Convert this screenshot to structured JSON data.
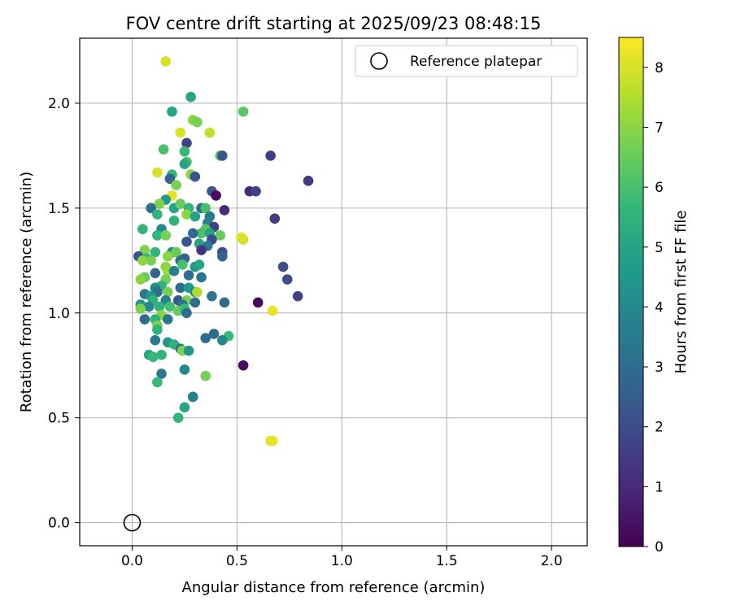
{
  "chart_data": {
    "type": "scatter",
    "title": "FOV centre drift starting at 2025/09/23 08:48:15",
    "xlabel": "Angular distance from reference (arcmin)",
    "ylabel": "Rotation from reference (arcmin)",
    "xlim": [
      -0.25,
      2.17
    ],
    "ylim": [
      -0.11,
      2.31
    ],
    "xticks": [
      0.0,
      0.5,
      1.0,
      1.5,
      2.0
    ],
    "xtick_labels": [
      "0.0",
      "0.5",
      "1.0",
      "1.5",
      "2.0"
    ],
    "yticks": [
      0.0,
      0.5,
      1.0,
      1.5,
      2.0
    ],
    "ytick_labels": [
      "0.0",
      "0.5",
      "1.0",
      "1.5",
      "2.0"
    ],
    "grid": true,
    "legend": {
      "label": "Reference platepar",
      "position": "top-right"
    },
    "reference_point": {
      "x": 0.0,
      "y": 0.0
    },
    "colorbar": {
      "label": "Hours from first FF file",
      "min": 0,
      "max": 8.5,
      "ticks": [
        0,
        1,
        2,
        3,
        4,
        5,
        6,
        7,
        8
      ],
      "tick_labels": [
        "0",
        "1",
        "2",
        "3",
        "4",
        "5",
        "6",
        "7",
        "8"
      ],
      "colormap": [
        "#440154",
        "#482878",
        "#3e4989",
        "#31688e",
        "#26828e",
        "#1f9e89",
        "#35b779",
        "#6ece58",
        "#b5de2b",
        "#fde725"
      ]
    },
    "points": [
      {
        "x": 0.16,
        "y": 2.2,
        "h": 8.0
      },
      {
        "x": 0.28,
        "y": 2.03,
        "h": 5.0
      },
      {
        "x": 0.19,
        "y": 1.96,
        "h": 5.0
      },
      {
        "x": 0.53,
        "y": 1.96,
        "h": 6.3
      },
      {
        "x": 0.29,
        "y": 1.92,
        "h": 7.0
      },
      {
        "x": 0.31,
        "y": 1.91,
        "h": 6.7
      },
      {
        "x": 0.23,
        "y": 1.86,
        "h": 8.0
      },
      {
        "x": 0.37,
        "y": 1.86,
        "h": 7.7
      },
      {
        "x": 0.26,
        "y": 1.81,
        "h": 1.7
      },
      {
        "x": 0.15,
        "y": 1.78,
        "h": 6.0
      },
      {
        "x": 0.25,
        "y": 1.77,
        "h": 5.7
      },
      {
        "x": 0.42,
        "y": 1.75,
        "h": 6.3
      },
      {
        "x": 0.43,
        "y": 1.75,
        "h": 2.3
      },
      {
        "x": 0.66,
        "y": 1.75,
        "h": 1.6
      },
      {
        "x": 0.84,
        "y": 1.63,
        "h": 1.5
      },
      {
        "x": 0.26,
        "y": 1.72,
        "h": 6.0
      },
      {
        "x": 0.25,
        "y": 1.71,
        "h": 5.0
      },
      {
        "x": 0.12,
        "y": 1.67,
        "h": 8.0
      },
      {
        "x": 0.28,
        "y": 1.66,
        "h": 7.0
      },
      {
        "x": 0.19,
        "y": 1.66,
        "h": 5.7
      },
      {
        "x": 0.3,
        "y": 1.65,
        "h": 2.3
      },
      {
        "x": 0.18,
        "y": 1.64,
        "h": 2.7
      },
      {
        "x": 0.21,
        "y": 1.61,
        "h": 6.7
      },
      {
        "x": 0.56,
        "y": 1.58,
        "h": 1.0
      },
      {
        "x": 0.59,
        "y": 1.58,
        "h": 1.7
      },
      {
        "x": 0.38,
        "y": 1.58,
        "h": 2.3
      },
      {
        "x": 0.19,
        "y": 1.56,
        "h": 8.2
      },
      {
        "x": 0.4,
        "y": 1.56,
        "h": 0.3
      },
      {
        "x": 0.16,
        "y": 1.54,
        "h": 4.5
      },
      {
        "x": 0.13,
        "y": 1.52,
        "h": 6.8
      },
      {
        "x": 0.09,
        "y": 1.5,
        "h": 3.0
      },
      {
        "x": 0.2,
        "y": 1.5,
        "h": 5.0
      },
      {
        "x": 0.23,
        "y": 1.52,
        "h": 6.5
      },
      {
        "x": 0.27,
        "y": 1.5,
        "h": 5.5
      },
      {
        "x": 0.33,
        "y": 1.5,
        "h": 3.0
      },
      {
        "x": 0.35,
        "y": 1.5,
        "h": 6.0
      },
      {
        "x": 0.44,
        "y": 1.49,
        "h": 1.0
      },
      {
        "x": 0.12,
        "y": 1.47,
        "h": 5.5
      },
      {
        "x": 0.26,
        "y": 1.47,
        "h": 7.0
      },
      {
        "x": 0.3,
        "y": 1.46,
        "h": 5.0
      },
      {
        "x": 0.37,
        "y": 1.46,
        "h": 3.3
      },
      {
        "x": 0.68,
        "y": 1.45,
        "h": 1.5
      },
      {
        "x": 0.2,
        "y": 1.44,
        "h": 5.5
      },
      {
        "x": 0.36,
        "y": 1.43,
        "h": 3.7
      },
      {
        "x": 0.39,
        "y": 1.41,
        "h": 1.7
      },
      {
        "x": 0.05,
        "y": 1.4,
        "h": 5.5
      },
      {
        "x": 0.14,
        "y": 1.4,
        "h": 4.0
      },
      {
        "x": 0.35,
        "y": 1.4,
        "h": 6.3
      },
      {
        "x": 0.33,
        "y": 1.38,
        "h": 6.0
      },
      {
        "x": 0.37,
        "y": 1.38,
        "h": 5.0
      },
      {
        "x": 0.12,
        "y": 1.37,
        "h": 5.5
      },
      {
        "x": 0.16,
        "y": 1.37,
        "h": 6.7
      },
      {
        "x": 0.29,
        "y": 1.38,
        "h": 3.0
      },
      {
        "x": 0.42,
        "y": 1.37,
        "h": 6.5
      },
      {
        "x": 0.38,
        "y": 1.35,
        "h": 2.0
      },
      {
        "x": 0.26,
        "y": 1.34,
        "h": 2.3
      },
      {
        "x": 0.32,
        "y": 1.33,
        "h": 5.0
      },
      {
        "x": 0.36,
        "y": 1.32,
        "h": 3.3
      },
      {
        "x": 0.33,
        "y": 1.3,
        "h": 1.2
      },
      {
        "x": 0.06,
        "y": 1.3,
        "h": 6.8
      },
      {
        "x": 0.11,
        "y": 1.29,
        "h": 5.5
      },
      {
        "x": 0.19,
        "y": 1.29,
        "h": 4.0
      },
      {
        "x": 0.21,
        "y": 1.29,
        "h": 6.5
      },
      {
        "x": 0.43,
        "y": 1.29,
        "h": 2.0
      },
      {
        "x": 0.52,
        "y": 1.36,
        "h": 8.2
      },
      {
        "x": 0.53,
        "y": 1.35,
        "h": 8.0
      },
      {
        "x": 0.03,
        "y": 1.27,
        "h": 2.3
      },
      {
        "x": 0.17,
        "y": 1.27,
        "h": 7.0
      },
      {
        "x": 0.43,
        "y": 1.27,
        "h": 2.7
      },
      {
        "x": 0.07,
        "y": 1.26,
        "h": 5.5
      },
      {
        "x": 0.09,
        "y": 1.25,
        "h": 6.7
      },
      {
        "x": 0.23,
        "y": 1.25,
        "h": 3.3
      },
      {
        "x": 0.25,
        "y": 1.26,
        "h": 2.7
      },
      {
        "x": 0.05,
        "y": 1.25,
        "h": 7.0
      },
      {
        "x": 0.16,
        "y": 1.22,
        "h": 7.0
      },
      {
        "x": 0.24,
        "y": 1.23,
        "h": 6.0
      },
      {
        "x": 0.3,
        "y": 1.22,
        "h": 4.5
      },
      {
        "x": 0.32,
        "y": 1.23,
        "h": 5.0
      },
      {
        "x": 0.72,
        "y": 1.22,
        "h": 2.0
      },
      {
        "x": 0.17,
        "y": 1.2,
        "h": 7.2
      },
      {
        "x": 0.2,
        "y": 1.2,
        "h": 3.7
      },
      {
        "x": 0.06,
        "y": 1.17,
        "h": 6.5
      },
      {
        "x": 0.11,
        "y": 1.19,
        "h": 2.7
      },
      {
        "x": 0.27,
        "y": 1.18,
        "h": 3.0
      },
      {
        "x": 0.33,
        "y": 1.17,
        "h": 3.3
      },
      {
        "x": 0.74,
        "y": 1.16,
        "h": 2.0
      },
      {
        "x": 0.04,
        "y": 1.16,
        "h": 7.0
      },
      {
        "x": 0.16,
        "y": 1.16,
        "h": 6.7
      },
      {
        "x": 0.14,
        "y": 1.13,
        "h": 5.5
      },
      {
        "x": 0.11,
        "y": 1.12,
        "h": 4.0
      },
      {
        "x": 0.23,
        "y": 1.12,
        "h": 3.0
      },
      {
        "x": 0.27,
        "y": 1.12,
        "h": 4.7
      },
      {
        "x": 0.12,
        "y": 1.1,
        "h": 3.0
      },
      {
        "x": 0.17,
        "y": 1.1,
        "h": 6.7
      },
      {
        "x": 0.3,
        "y": 1.1,
        "h": 3.7
      },
      {
        "x": 0.31,
        "y": 1.1,
        "h": 7.5
      },
      {
        "x": 0.06,
        "y": 1.09,
        "h": 3.3
      },
      {
        "x": 0.09,
        "y": 1.08,
        "h": 4.5
      },
      {
        "x": 0.38,
        "y": 1.08,
        "h": 3.3
      },
      {
        "x": 0.79,
        "y": 1.08,
        "h": 1.7
      },
      {
        "x": 0.1,
        "y": 1.06,
        "h": 5.5
      },
      {
        "x": 0.16,
        "y": 1.06,
        "h": 3.7
      },
      {
        "x": 0.22,
        "y": 1.06,
        "h": 2.3
      },
      {
        "x": 0.26,
        "y": 1.06,
        "h": 6.7
      },
      {
        "x": 0.3,
        "y": 1.05,
        "h": 3.0
      },
      {
        "x": 0.44,
        "y": 1.05,
        "h": 3.0
      },
      {
        "x": 0.6,
        "y": 1.05,
        "h": 0.2
      },
      {
        "x": 0.04,
        "y": 1.04,
        "h": 4.5
      },
      {
        "x": 0.08,
        "y": 1.03,
        "h": 4.0
      },
      {
        "x": 0.13,
        "y": 1.03,
        "h": 5.5
      },
      {
        "x": 0.18,
        "y": 1.03,
        "h": 6.0
      },
      {
        "x": 0.24,
        "y": 1.04,
        "h": 3.3
      },
      {
        "x": 0.04,
        "y": 1.02,
        "h": 6.8
      },
      {
        "x": 0.22,
        "y": 1.01,
        "h": 6.5
      },
      {
        "x": 0.25,
        "y": 1.02,
        "h": 5.7
      },
      {
        "x": 0.67,
        "y": 1.01,
        "h": 8.2
      },
      {
        "x": 0.14,
        "y": 0.99,
        "h": 7.0
      },
      {
        "x": 0.26,
        "y": 1.0,
        "h": 3.0
      },
      {
        "x": 0.06,
        "y": 0.97,
        "h": 3.0
      },
      {
        "x": 0.11,
        "y": 0.97,
        "h": 5.5
      },
      {
        "x": 0.17,
        "y": 0.97,
        "h": 3.3
      },
      {
        "x": 0.12,
        "y": 0.94,
        "h": 6.7
      },
      {
        "x": 0.12,
        "y": 0.92,
        "h": 5.5
      },
      {
        "x": 0.39,
        "y": 0.9,
        "h": 3.0
      },
      {
        "x": 0.46,
        "y": 0.89,
        "h": 5.7
      },
      {
        "x": 0.35,
        "y": 0.88,
        "h": 3.0
      },
      {
        "x": 0.11,
        "y": 0.87,
        "h": 3.5
      },
      {
        "x": 0.43,
        "y": 0.87,
        "h": 4.0
      },
      {
        "x": 0.17,
        "y": 0.86,
        "h": 4.5
      },
      {
        "x": 0.2,
        "y": 0.85,
        "h": 5.5
      },
      {
        "x": 0.23,
        "y": 0.83,
        "h": 3.3
      },
      {
        "x": 0.24,
        "y": 0.82,
        "h": 6.8
      },
      {
        "x": 0.27,
        "y": 0.82,
        "h": 4.5
      },
      {
        "x": 0.08,
        "y": 0.8,
        "h": 5.0
      },
      {
        "x": 0.14,
        "y": 0.8,
        "h": 5.5
      },
      {
        "x": 0.1,
        "y": 0.79,
        "h": 5.7
      },
      {
        "x": 0.53,
        "y": 0.75,
        "h": 0.3
      },
      {
        "x": 0.25,
        "y": 0.73,
        "h": 4.0
      },
      {
        "x": 0.14,
        "y": 0.71,
        "h": 3.3
      },
      {
        "x": 0.35,
        "y": 0.7,
        "h": 6.7
      },
      {
        "x": 0.12,
        "y": 0.67,
        "h": 5.7
      },
      {
        "x": 0.29,
        "y": 0.6,
        "h": 5.0
      },
      {
        "x": 0.29,
        "y": 0.6,
        "h": 3.7
      },
      {
        "x": 0.25,
        "y": 0.55,
        "h": 5.0
      },
      {
        "x": 0.22,
        "y": 0.5,
        "h": 5.5
      },
      {
        "x": 0.66,
        "y": 0.39,
        "h": 8.0
      },
      {
        "x": 0.67,
        "y": 0.39,
        "h": 8.2
      }
    ]
  }
}
